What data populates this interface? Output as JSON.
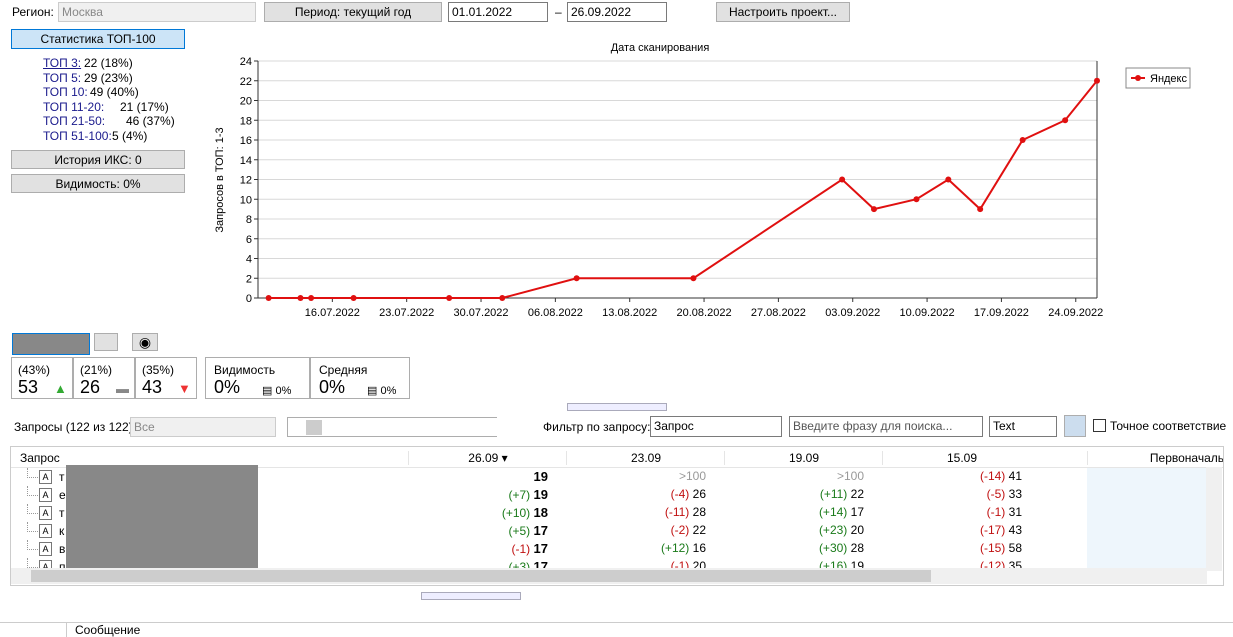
{
  "toolbar": {
    "region_label": "Регион:",
    "region": "Москва",
    "period": "Период: текущий год",
    "date_from": "01.01.2022",
    "dash": "–",
    "date_to": "26.09.2022",
    "setup": "Настроить проект..."
  },
  "stats": {
    "button": "Статистика ТОП-100",
    "items": [
      {
        "label": "ТОП 3:",
        "value": "22 (18%)"
      },
      {
        "label": "ТОП 5:",
        "value": "29 (23%)"
      },
      {
        "label": "ТОП 10:",
        "value": "49 (40%)"
      },
      {
        "label": "ТОП 11-20:",
        "value": "21 (17%)"
      },
      {
        "label": "ТОП 21-50:",
        "value": "46 (37%)"
      },
      {
        "label": "ТОП 51-100:",
        "value": "5 (4%)"
      }
    ],
    "iks": "История ИКС: 0",
    "visibility": "Видимость: 0%"
  },
  "chart_data": {
    "type": "line",
    "title": "Дата сканирования",
    "y_label": "Запросов в ТОП: 1-3",
    "x": [
      "10.07.2022",
      "13.07.2022",
      "14.07.2022",
      "18.07.2022",
      "27.07.2022",
      "01.08.2022",
      "08.08.2022",
      "19.08.2022",
      "02.09.2022",
      "05.09.2022",
      "09.09.2022",
      "12.09.2022",
      "15.09.2022",
      "19.09.2022",
      "23.09.2022",
      "26.09.2022"
    ],
    "series": [
      {
        "name": "Яндекс",
        "color": "#e01010",
        "values": [
          0,
          0,
          0,
          0,
          0,
          0,
          2,
          2,
          12,
          9,
          10,
          12,
          9,
          16,
          18,
          22
        ]
      }
    ],
    "xlim": [
      "09.07.2022",
      "26.09.2022"
    ],
    "ylim": [
      0,
      24
    ],
    "xticks": [
      "16.07.2022",
      "23.07.2022",
      "30.07.2022",
      "06.08.2022",
      "13.08.2022",
      "20.08.2022",
      "27.08.2022",
      "03.09.2022",
      "10.09.2022",
      "17.09.2022",
      "24.09.2022"
    ],
    "yticks": [
      0,
      2,
      4,
      6,
      8,
      10,
      12,
      14,
      16,
      18,
      20,
      22,
      24
    ],
    "grid": true,
    "legend": "top-right"
  },
  "summary": {
    "boxes": [
      {
        "share": "(43%)",
        "value": "53"
      },
      {
        "share": "(21%)",
        "value": "26"
      },
      {
        "share": "(35%)",
        "value": "43"
      }
    ],
    "visibility": {
      "label": "Видимость",
      "value": "0%",
      "small": "0%"
    },
    "average": {
      "label": "Средняя",
      "value": "0%",
      "small": "0%"
    }
  },
  "filter": {
    "count": "Запросы (122 из 122)",
    "all": "Все",
    "filter_label": "Фильтр по запросу:",
    "filter": "Запрос",
    "search": "Введите фразу для поиска...",
    "mode": "Text",
    "exact": "Точное соответствие"
  },
  "table": {
    "headers": [
      "Запрос",
      "26.09",
      "23.09",
      "19.09",
      "15.09",
      "Первоначаль"
    ],
    "rows": [
      {
        "query": "т",
        "cells": [
          {
            "position": "19"
          },
          {
            "position": ">100"
          },
          {
            "position": ">100"
          },
          {
            "change": "(-14)",
            "position": "41"
          }
        ]
      },
      {
        "query": "е",
        "cells": [
          {
            "change": "(+7)",
            "position": "19"
          },
          {
            "change": "(-4)",
            "position": "26"
          },
          {
            "change": "(+11)",
            "position": "22"
          },
          {
            "change": "(-5)",
            "position": "33"
          }
        ]
      },
      {
        "query": "т",
        "cells": [
          {
            "change": "(+10)",
            "position": "18"
          },
          {
            "change": "(-11)",
            "position": "28"
          },
          {
            "change": "(+14)",
            "position": "17"
          },
          {
            "change": "(-1)",
            "position": "31"
          }
        ]
      },
      {
        "query": "к",
        "cells": [
          {
            "change": "(+5)",
            "position": "17"
          },
          {
            "change": "(-2)",
            "position": "22"
          },
          {
            "change": "(+23)",
            "position": "20"
          },
          {
            "change": "(-17)",
            "position": "43"
          }
        ]
      },
      {
        "query": "в",
        "cells": [
          {
            "change": "(-1)",
            "position": "17"
          },
          {
            "change": "(+12)",
            "position": "16"
          },
          {
            "change": "(+30)",
            "position": "28"
          },
          {
            "change": "(-15)",
            "position": "58"
          }
        ]
      },
      {
        "query": "п",
        "cells": [
          {
            "change": "(+3)",
            "position": "17"
          },
          {
            "change": "(-1)",
            "position": "20"
          },
          {
            "change": "(+16)",
            "position": "19"
          },
          {
            "change": "(-12)",
            "position": "35"
          }
        ]
      }
    ]
  },
  "messages": {
    "header": "Сообщение"
  }
}
